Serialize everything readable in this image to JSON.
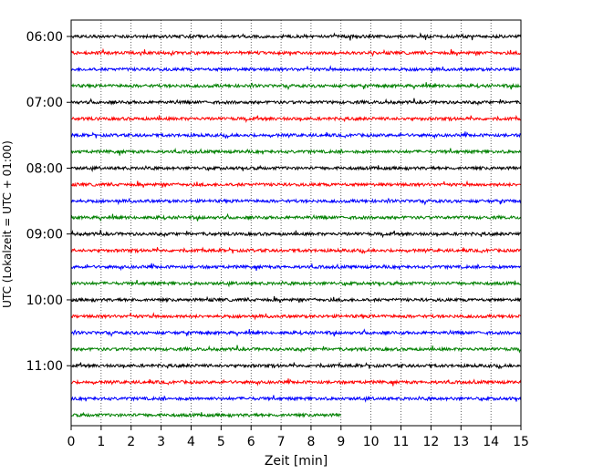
{
  "chart_data": {
    "type": "line",
    "title": "",
    "xlabel": "Zeit  [min]",
    "ylabel": "UTC (Lokalzeit = UTC + 01:00)",
    "xlim": [
      0,
      15
    ],
    "x_ticks": [
      0,
      1,
      2,
      3,
      4,
      5,
      6,
      7,
      8,
      9,
      10,
      11,
      12,
      13,
      14,
      15
    ],
    "y_ticks": [
      "06:00",
      "07:00",
      "08:00",
      "09:00",
      "10:00",
      "11:00"
    ],
    "y_tick_trace_index": [
      0,
      4,
      8,
      12,
      16,
      20
    ],
    "trace_interval_minutes": 15,
    "grid": "vertical dotted",
    "legend": "none",
    "series_colors": [
      "#000000",
      "#ff0000",
      "#0000ff",
      "#008000"
    ],
    "traces": [
      {
        "start": "06:00",
        "end_minute": 15,
        "color": "#000000"
      },
      {
        "start": "06:15",
        "end_minute": 15,
        "color": "#ff0000"
      },
      {
        "start": "06:30",
        "end_minute": 15,
        "color": "#0000ff"
      },
      {
        "start": "06:45",
        "end_minute": 15,
        "color": "#008000"
      },
      {
        "start": "07:00",
        "end_minute": 15,
        "color": "#000000"
      },
      {
        "start": "07:15",
        "end_minute": 15,
        "color": "#ff0000"
      },
      {
        "start": "07:30",
        "end_minute": 15,
        "color": "#0000ff"
      },
      {
        "start": "07:45",
        "end_minute": 15,
        "color": "#008000"
      },
      {
        "start": "08:00",
        "end_minute": 15,
        "color": "#000000"
      },
      {
        "start": "08:15",
        "end_minute": 15,
        "color": "#ff0000"
      },
      {
        "start": "08:30",
        "end_minute": 15,
        "color": "#0000ff"
      },
      {
        "start": "08:45",
        "end_minute": 15,
        "color": "#008000"
      },
      {
        "start": "09:00",
        "end_minute": 15,
        "color": "#000000"
      },
      {
        "start": "09:15",
        "end_minute": 15,
        "color": "#ff0000"
      },
      {
        "start": "09:30",
        "end_minute": 15,
        "color": "#0000ff"
      },
      {
        "start": "09:45",
        "end_minute": 15,
        "color": "#008000"
      },
      {
        "start": "10:00",
        "end_minute": 15,
        "color": "#000000"
      },
      {
        "start": "10:15",
        "end_minute": 15,
        "color": "#ff0000"
      },
      {
        "start": "10:30",
        "end_minute": 15,
        "color": "#0000ff"
      },
      {
        "start": "10:45",
        "end_minute": 15,
        "color": "#008000"
      },
      {
        "start": "11:00",
        "end_minute": 15,
        "color": "#000000"
      },
      {
        "start": "11:15",
        "end_minute": 15,
        "color": "#ff0000"
      },
      {
        "start": "11:30",
        "end_minute": 15,
        "color": "#0000ff"
      },
      {
        "start": "11:45",
        "end_minute": 9,
        "color": "#008000"
      }
    ]
  }
}
